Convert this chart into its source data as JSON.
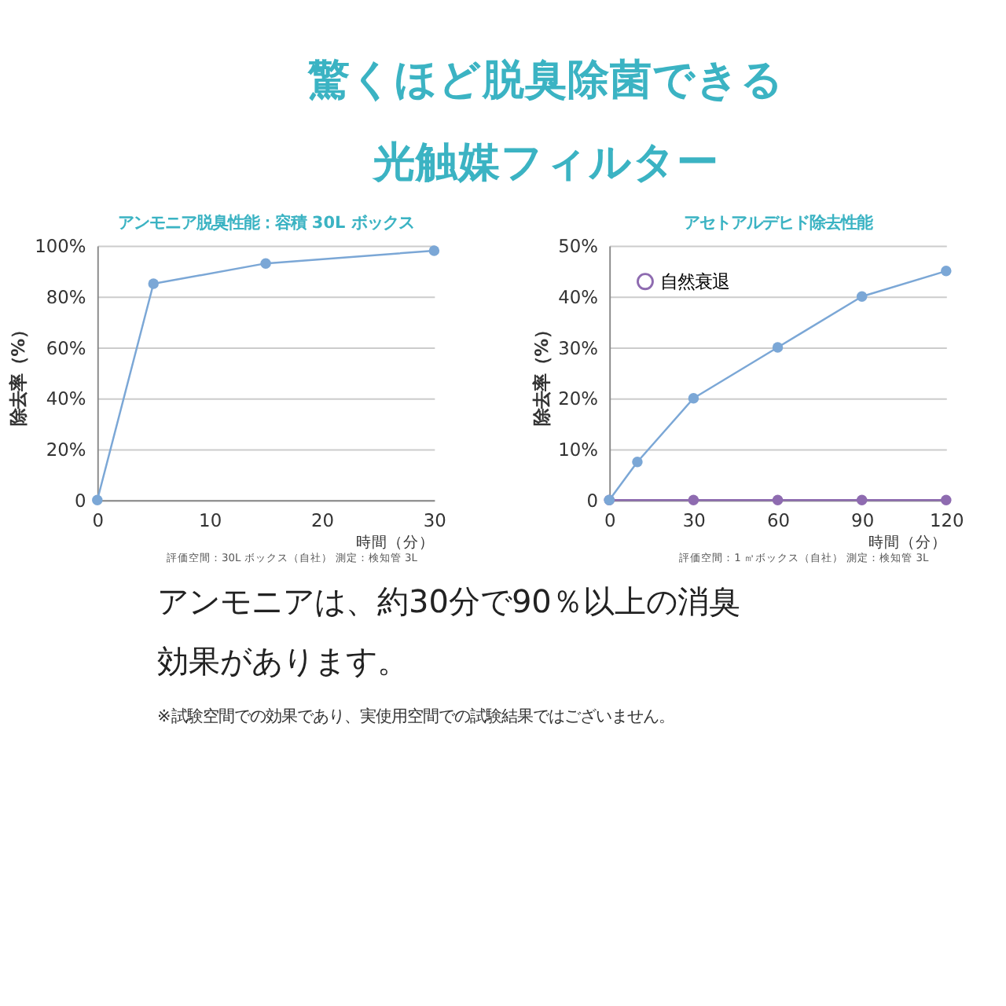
{
  "chart_data": [
    {
      "type": "line",
      "title": "アンモニア脱臭性能：容積 30L ボックス",
      "xlabel": "時間（分）",
      "ylabel": "除去率（%）",
      "x": [
        0,
        5,
        15,
        30
      ],
      "series": [
        {
          "color": "#7ba7d6",
          "values": [
            0,
            85,
            93,
            98
          ]
        }
      ],
      "xlim": [
        0,
        30
      ],
      "xticks": [
        0,
        10,
        20,
        30
      ],
      "ylim": [
        0,
        100
      ],
      "yticks": [
        0,
        {
          "value": 20,
          "label": "20%"
        },
        {
          "value": 40,
          "label": "40%"
        },
        {
          "value": 60,
          "label": "60%"
        },
        {
          "value": 80,
          "label": "80%"
        },
        {
          "value": 100,
          "label": "100%"
        }
      ],
      "grid": "y",
      "marker": "circle",
      "legend": false,
      "annotations": [
        "驚くほど脱臭除菌できる",
        "光触媒フィルター",
        "評価空間：30L ボックス（自社） 測定：検知管 3L",
        "アンモニアは、約30分で90％以上の消臭",
        "効果があります。",
        "※試験空間での効果であり、実使用空間での試験結果ではございません。"
      ]
    },
    {
      "type": "line",
      "title": "アセトアルデヒド除去性能",
      "xlabel": "時間（分）",
      "ylabel": "除去率（%）",
      "series": [
        {
          "name": "自然衰退",
          "color": "#8e6bb0",
          "x": [
            0,
            30,
            60,
            90,
            120
          ],
          "values": [
            0,
            0,
            0,
            0,
            0
          ]
        },
        {
          "color": "#7ba7d6",
          "x": [
            0,
            10,
            30,
            60,
            90,
            120
          ],
          "values": [
            0,
            7.5,
            20,
            30,
            40,
            45
          ]
        }
      ],
      "xlim": [
        0,
        120
      ],
      "xticks": [
        0,
        30,
        60,
        90,
        120
      ],
      "ylim": [
        0,
        50
      ],
      "yticks": [
        0,
        {
          "value": 10,
          "label": "10%"
        },
        {
          "value": 20,
          "label": "20%"
        },
        {
          "value": 30,
          "label": "30%"
        },
        {
          "value": 40,
          "label": "40%"
        },
        {
          "value": 50,
          "label": "50%"
        }
      ],
      "grid": "y",
      "marker": "circle",
      "legend": "top left",
      "annotations": [
        "評価空間：1 ㎥ボックス（自社） 測定：検知管 3L"
      ]
    }
  ]
}
